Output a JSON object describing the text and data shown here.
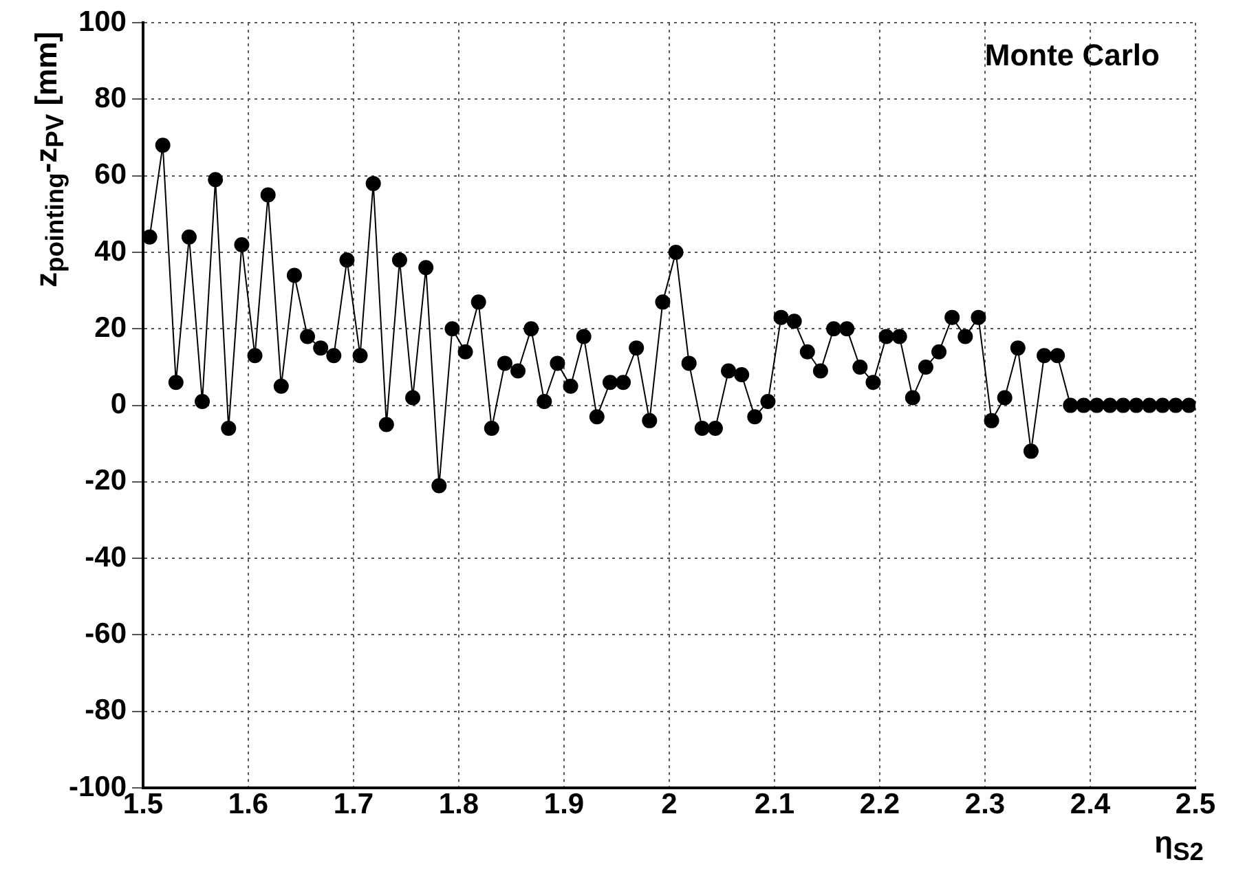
{
  "chart_data": {
    "type": "line",
    "xlabel": "η$_{S2}$",
    "ylabel": "z$_{pointing}$-z$_{PV}$ [mm]",
    "annotations": [
      "Monte Carlo"
    ],
    "x": [
      1.50625,
      1.51875,
      1.53125,
      1.54375,
      1.55625,
      1.56875,
      1.58125,
      1.59375,
      1.60625,
      1.61875,
      1.63125,
      1.64375,
      1.65625,
      1.66875,
      1.68125,
      1.69375,
      1.70625,
      1.71875,
      1.73125,
      1.74375,
      1.75625,
      1.76875,
      1.78125,
      1.79375,
      1.80625,
      1.81875,
      1.83125,
      1.84375,
      1.85625,
      1.86875,
      1.88125,
      1.89375,
      1.90625,
      1.91875,
      1.93125,
      1.94375,
      1.95625,
      1.96875,
      1.98125,
      1.99375,
      2.00625,
      2.01875,
      2.03125,
      2.04375,
      2.05625,
      2.06875,
      2.08125,
      2.09375,
      2.10625,
      2.11875,
      2.13125,
      2.14375,
      2.15625,
      2.16875,
      2.18125,
      2.19375,
      2.20625,
      2.21875,
      2.23125,
      2.24375,
      2.25625,
      2.26875,
      2.28125,
      2.29375,
      2.30625,
      2.31875,
      2.33125,
      2.34375,
      2.35625,
      2.36875,
      2.38125,
      2.39375,
      2.40625,
      2.41875,
      2.43125,
      2.44375,
      2.45625,
      2.46875,
      2.48125,
      2.49375
    ],
    "series": [
      {
        "color": "#000000",
        "values": [
          44,
          68,
          6,
          44,
          1,
          59,
          -6,
          42,
          13,
          55,
          5,
          34,
          18,
          15,
          13,
          38,
          13,
          58,
          -5,
          38,
          2,
          36,
          -21,
          20,
          14,
          27,
          -6,
          11,
          9,
          20,
          1,
          11,
          5,
          18,
          -3,
          6,
          6,
          15,
          -4,
          27,
          40,
          11,
          -6,
          -6,
          9,
          8,
          -3,
          1,
          23,
          22,
          14,
          9,
          20,
          20,
          10,
          6,
          18,
          18,
          2,
          10,
          14,
          23,
          18,
          23,
          -4,
          2,
          15,
          -12,
          13,
          13,
          0,
          0,
          0,
          0,
          0,
          0,
          0,
          0,
          0,
          0
        ]
      }
    ],
    "xlim": [
      1.5,
      2.5
    ],
    "xticks": [
      1.5,
      1.6,
      1.7,
      1.8,
      1.9,
      2,
      2.1,
      2.2,
      2.3,
      2.4,
      2.5
    ],
    "ylim": [
      -100,
      100
    ],
    "yticks": [
      -100,
      -80,
      -60,
      -40,
      -20,
      0,
      20,
      40,
      60,
      80,
      100
    ],
    "grid": true,
    "legend": false,
    "marker": "circle",
    "line_style": "solid"
  }
}
